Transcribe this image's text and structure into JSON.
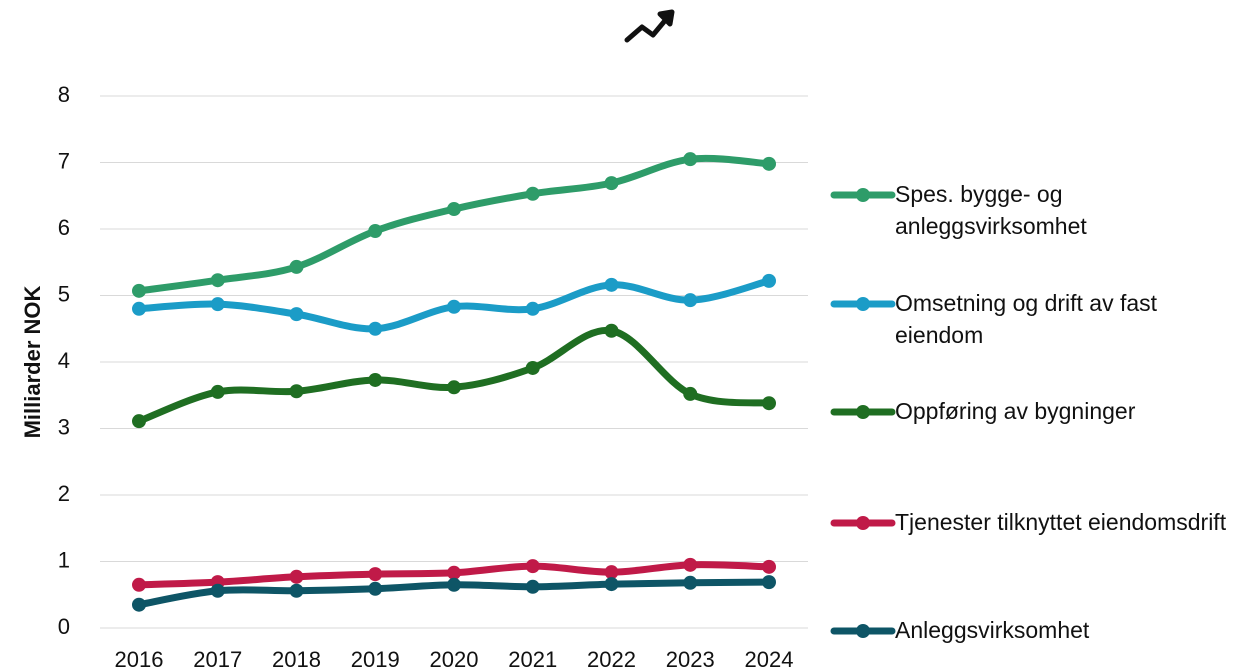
{
  "chart_data": {
    "type": "line",
    "y_label": "Milliarder NOK",
    "categories": [
      "2016",
      "2017",
      "2018",
      "2019",
      "2020",
      "2021",
      "2022",
      "2023",
      "2024"
    ],
    "series": [
      {
        "name": "Spes. bygge- og anleggsvirksomhet",
        "color": "#2e9c69",
        "values": [
          5.07,
          5.23,
          5.43,
          5.97,
          6.3,
          6.53,
          6.69,
          7.05,
          6.98
        ]
      },
      {
        "name": "Omsetning og drift av fast eiendom",
        "color": "#1b9cc7",
        "values": [
          4.8,
          4.87,
          4.72,
          4.5,
          4.83,
          4.8,
          5.16,
          4.93,
          5.22
        ]
      },
      {
        "name": "Oppføring av bygninger",
        "color": "#1f6e22",
        "values": [
          3.11,
          3.55,
          3.56,
          3.73,
          3.62,
          3.91,
          4.47,
          3.52,
          3.38
        ]
      },
      {
        "name": "Tjenester tilknyttet eiendomsdrift",
        "color": "#c01a48",
        "values": [
          0.65,
          0.69,
          0.77,
          0.81,
          0.83,
          0.93,
          0.84,
          0.95,
          0.92
        ]
      },
      {
        "name": "Anleggsvirksomhet",
        "color": "#0e5566",
        "values": [
          0.35,
          0.56,
          0.56,
          0.59,
          0.65,
          0.62,
          0.66,
          0.68,
          0.69
        ]
      }
    ],
    "ylim": [
      0,
      8
    ],
    "yticks": [
      0,
      1,
      2,
      3,
      4,
      5,
      6,
      7,
      8
    ],
    "grid": true,
    "legend": "right"
  }
}
